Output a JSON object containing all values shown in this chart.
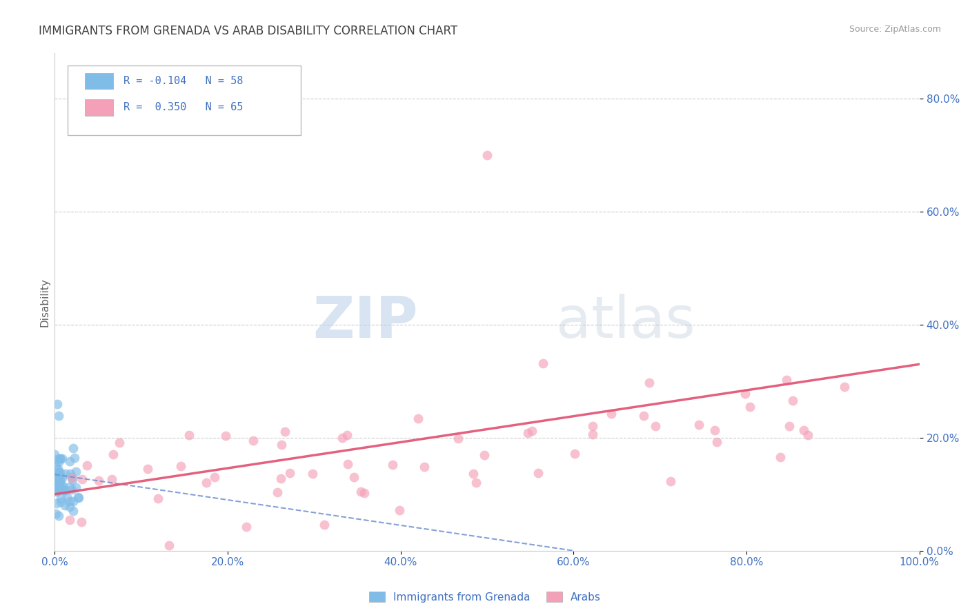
{
  "title": "IMMIGRANTS FROM GRENADA VS ARAB DISABILITY CORRELATION CHART",
  "source": "Source: ZipAtlas.com",
  "ylabel": "Disability",
  "watermark_zip": "ZIP",
  "watermark_atlas": "atlas",
  "legend_blue_r": "-0.104",
  "legend_blue_n": "58",
  "legend_pink_r": "0.350",
  "legend_pink_n": "65",
  "blue_color": "#7fbce8",
  "pink_color": "#f4a0b8",
  "trendline_blue_color": "#7090d0",
  "trendline_pink_color": "#e05070",
  "axis_label_color": "#4070c0",
  "title_color": "#404040",
  "grid_color": "#cccccc",
  "xmin": 0.0,
  "xmax": 100.0,
  "ymin": 0.0,
  "ymax": 88.0,
  "yticks": [
    0,
    20,
    40,
    60,
    80
  ],
  "ytick_labels": [
    "0.0%",
    "20.0%",
    "40.0%",
    "60.0%",
    "80.0%"
  ],
  "xticks": [
    0,
    20,
    40,
    60,
    80,
    100
  ],
  "xtick_labels": [
    "0.0%",
    "20.0%",
    "40.0%",
    "60.0%",
    "80.0%",
    "100.0%"
  ]
}
